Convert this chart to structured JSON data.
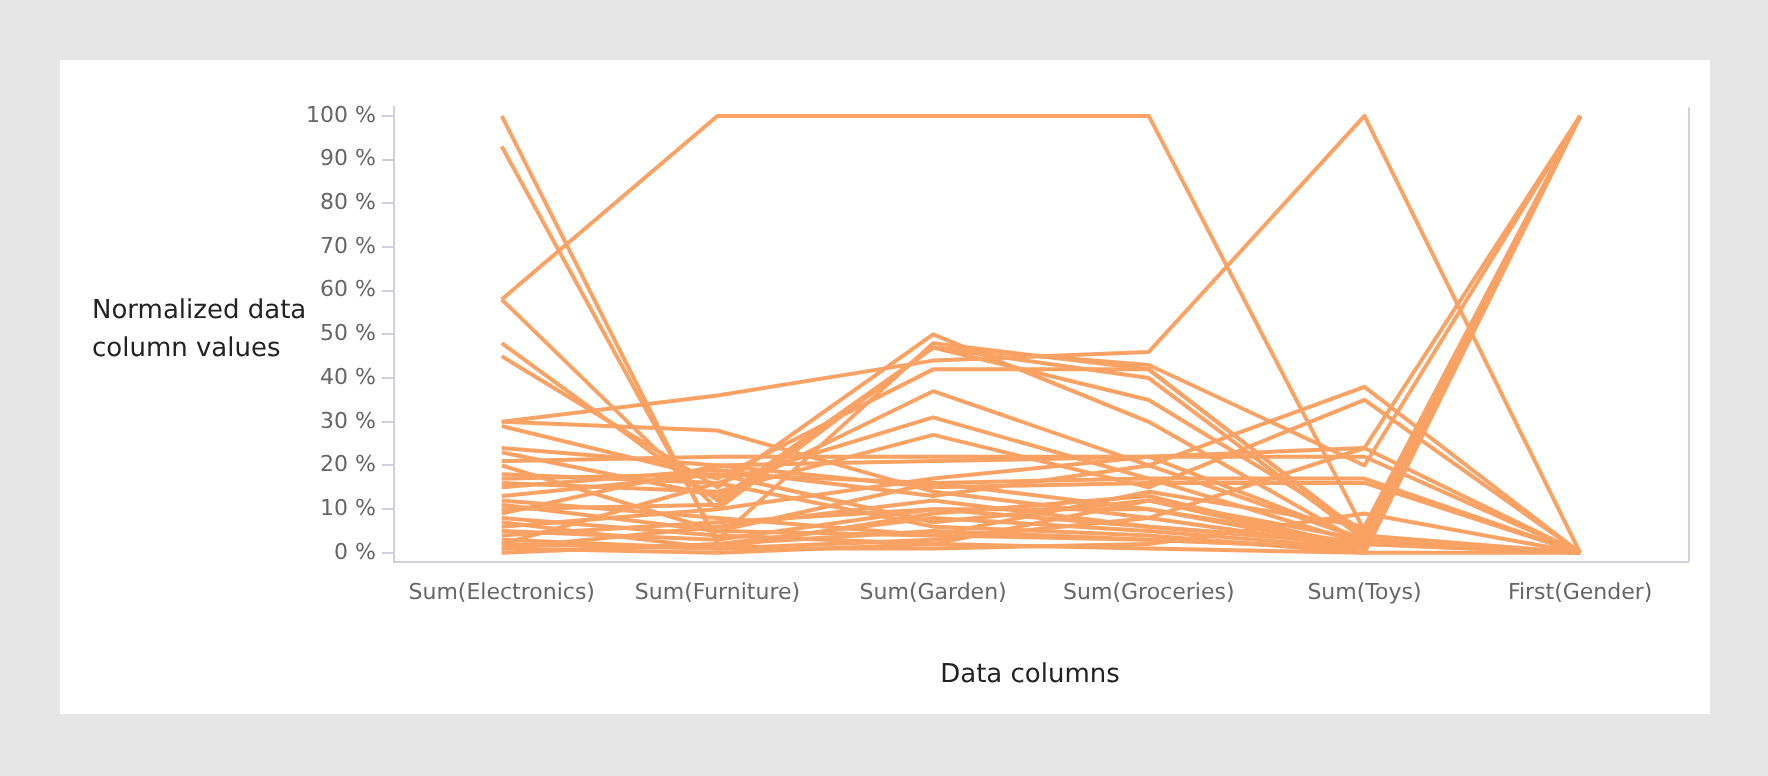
{
  "chart_data": {
    "type": "line",
    "xlabel": "Data columns",
    "ylabel": "Normalized data column values",
    "categories": [
      "Sum(Electronics)",
      "Sum(Furniture)",
      "Sum(Garden)",
      "Sum(Groceries)",
      "Sum(Toys)",
      "First(Gender)"
    ],
    "ylim": [
      -2,
      102
    ],
    "yticks": [
      {
        "value": 0,
        "label": "0 %"
      },
      {
        "value": 10,
        "label": "10 %"
      },
      {
        "value": 20,
        "label": "20 %"
      },
      {
        "value": 30,
        "label": "30 %"
      },
      {
        "value": 40,
        "label": "40 %"
      },
      {
        "value": 50,
        "label": "50 %"
      },
      {
        "value": 60,
        "label": "60 %"
      },
      {
        "value": 70,
        "label": "70 %"
      },
      {
        "value": 80,
        "label": "80 %"
      },
      {
        "value": 90,
        "label": "90 %"
      },
      {
        "value": 100,
        "label": "100 %"
      }
    ],
    "grid": false,
    "legend": false,
    "marker": "none",
    "line_style": "solid",
    "series": [
      {
        "color": "#f9a264",
        "values": [
          100,
          2,
          8,
          5,
          1,
          100
        ]
      },
      {
        "color": "#f9a264",
        "values": [
          93,
          3,
          10,
          6,
          2,
          100
        ]
      },
      {
        "color": "#f9a264",
        "values": [
          58,
          100,
          100,
          100,
          5,
          100
        ]
      },
      {
        "color": "#f9a264",
        "values": [
          58,
          10,
          47,
          43,
          20,
          100
        ]
      },
      {
        "color": "#f9a264",
        "values": [
          48,
          12,
          47,
          40,
          3,
          0
        ]
      },
      {
        "color": "#f9a264",
        "values": [
          45,
          15,
          50,
          30,
          2,
          100
        ]
      },
      {
        "color": "#f9a264",
        "values": [
          30,
          36,
          44,
          46,
          100,
          0
        ]
      },
      {
        "color": "#f9a264",
        "values": [
          30,
          28,
          14,
          8,
          1,
          100
        ]
      },
      {
        "color": "#f9a264",
        "values": [
          29,
          17,
          42,
          42,
          4,
          0
        ]
      },
      {
        "color": "#f9a264",
        "values": [
          24,
          20,
          21,
          22,
          24,
          0
        ]
      },
      {
        "color": "#f9a264",
        "values": [
          23,
          13,
          37,
          20,
          3,
          100
        ]
      },
      {
        "color": "#f9a264",
        "values": [
          21,
          22,
          22,
          22,
          22,
          0
        ]
      },
      {
        "color": "#f9a264",
        "values": [
          18,
          16,
          31,
          17,
          2,
          100
        ]
      },
      {
        "color": "#f9a264",
        "values": [
          17,
          18,
          7,
          12,
          1,
          100
        ]
      },
      {
        "color": "#f9a264",
        "values": [
          16,
          14,
          27,
          15,
          35,
          0
        ]
      },
      {
        "color": "#f9a264",
        "values": [
          15,
          19,
          13,
          20,
          38,
          0
        ]
      },
      {
        "color": "#f9a264",
        "values": [
          12,
          8,
          4,
          3,
          1,
          100
        ]
      },
      {
        "color": "#f9a264",
        "values": [
          11,
          5,
          16,
          17,
          17,
          0
        ]
      },
      {
        "color": "#f9a264",
        "values": [
          10,
          11,
          47,
          35,
          5,
          100
        ]
      },
      {
        "color": "#f9a264",
        "values": [
          9,
          20,
          15,
          16,
          16,
          0
        ]
      },
      {
        "color": "#f9a264",
        "values": [
          8,
          4,
          2,
          12,
          3,
          100
        ]
      },
      {
        "color": "#f9a264",
        "values": [
          7,
          1,
          9,
          13,
          1,
          100
        ]
      },
      {
        "color": "#f9a264",
        "values": [
          6,
          10,
          17,
          22,
          3,
          0
        ]
      },
      {
        "color": "#f9a264",
        "values": [
          5,
          3,
          48,
          42,
          4,
          100
        ]
      },
      {
        "color": "#f9a264",
        "values": [
          4,
          7,
          10,
          10,
          2,
          0
        ]
      },
      {
        "color": "#f9a264",
        "values": [
          3,
          1,
          3,
          8,
          24,
          100
        ]
      },
      {
        "color": "#f9a264",
        "values": [
          2,
          16,
          6,
          4,
          0,
          100
        ]
      },
      {
        "color": "#f9a264",
        "values": [
          1,
          0,
          2,
          1,
          0,
          0
        ]
      },
      {
        "color": "#f9a264",
        "values": [
          0,
          2,
          5,
          3,
          1,
          100
        ]
      },
      {
        "color": "#f9a264",
        "values": [
          1,
          6,
          12,
          6,
          2,
          0
        ]
      },
      {
        "color": "#f9a264",
        "values": [
          2,
          1,
          1,
          2,
          9,
          0
        ]
      },
      {
        "color": "#f9a264",
        "values": [
          20,
          5,
          4,
          14,
          6,
          100
        ]
      },
      {
        "color": "#f9a264",
        "values": [
          13,
          18,
          16,
          10,
          1,
          100
        ]
      }
    ]
  }
}
